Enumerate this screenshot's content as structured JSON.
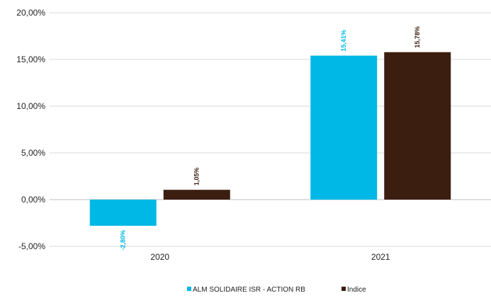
{
  "chart_data": {
    "type": "bar",
    "categories": [
      "2020",
      "2021"
    ],
    "series": [
      {
        "name": "ALM SOLIDAIRE ISR - ACTION RB",
        "values": [
          -2.8,
          15.41
        ],
        "labels": [
          "-2,80%",
          "15,41%"
        ],
        "color": "#00B8E6"
      },
      {
        "name": "Indice",
        "values": [
          1.05,
          15.78
        ],
        "labels": [
          "1,05%",
          "15,78%"
        ],
        "color": "#3B1E10"
      }
    ],
    "yticks": [
      -5,
      0,
      5,
      10,
      15,
      20
    ],
    "ytick_labels": [
      "-5,00%",
      "0,00%",
      "5,00%",
      "10,00%",
      "15,00%",
      "20,00%"
    ],
    "ylim": [
      -5,
      20
    ],
    "grid": "horizontal",
    "legend": "bottom-center",
    "title": "",
    "xlabel": "",
    "ylabel": ""
  }
}
